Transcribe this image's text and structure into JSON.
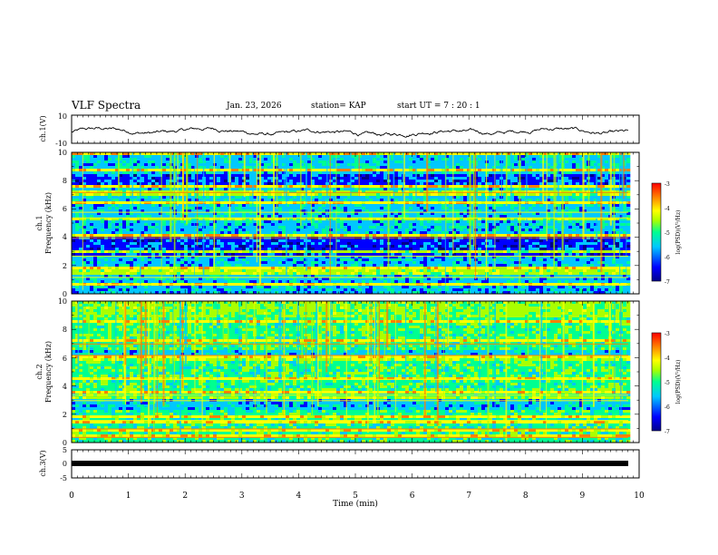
{
  "header": {
    "title": "VLF Spectra",
    "date": "Jan. 23, 2026",
    "station_text": "station= KAP",
    "start_text": "start  UT  =   7 : 20 : 1"
  },
  "chart_data": {
    "type": "heatmap",
    "x_axis": {
      "label": "Time (min)",
      "range": [
        0,
        10
      ],
      "ticks": [
        "0",
        "1",
        "2",
        "3",
        "4",
        "5",
        "6",
        "7",
        "8",
        "9",
        "10"
      ]
    },
    "panels": [
      {
        "id": "ch1_waveform",
        "kind": "line",
        "ylabel": "ch.1(V)",
        "ylim": [
          -10,
          10
        ],
        "yticks": [
          "10",
          "-10"
        ],
        "description_values": {
          "mean_level": 0,
          "swing": 7
        }
      },
      {
        "id": "ch1_spectrogram",
        "kind": "heatmap",
        "ylabel_top": "ch.1",
        "ylabel": "Frequency (kHz)",
        "ylim": [
          0,
          10
        ],
        "yticks": [
          "0",
          "2",
          "4",
          "6",
          "8",
          "10"
        ],
        "colorbar": {
          "label": "log(PSD)(V²/Hz)",
          "range": [
            -7,
            -3
          ],
          "ticks": [
            "-3",
            "-4",
            "-5",
            "-6",
            "-7"
          ]
        }
      },
      {
        "id": "ch2_spectrogram",
        "kind": "heatmap",
        "ylabel_top": "ch.2",
        "ylabel": "Frequency (kHz)",
        "ylim": [
          0,
          10
        ],
        "yticks": [
          "0",
          "2",
          "4",
          "6",
          "8",
          "10"
        ],
        "colorbar": {
          "label": "log(PSD)(V²/Hz)",
          "range": [
            -7,
            -3
          ],
          "ticks": [
            "-3",
            "-4",
            "-5",
            "-6",
            "-7"
          ]
        }
      },
      {
        "id": "ch3_waveform",
        "kind": "line",
        "ylabel": "ch.3(V)",
        "ylim": [
          -5,
          5
        ],
        "yticks": [
          "5",
          "0",
          "-5"
        ],
        "description_values": {
          "level": -0.2
        }
      }
    ],
    "colorscale": [
      "#00008b",
      "#0000ff",
      "#00c8ff",
      "#00ff90",
      "#aaff00",
      "#ffff00",
      "#ff8000",
      "#ff0000"
    ]
  }
}
